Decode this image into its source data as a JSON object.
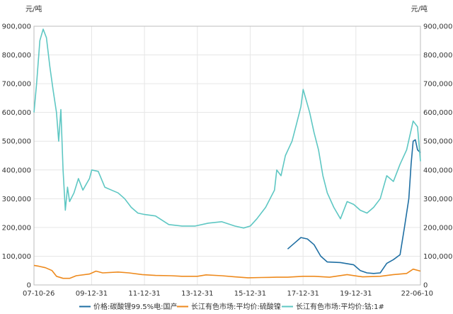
{
  "chart_data": {
    "type": "line",
    "y_unit_left": "元/吨",
    "y_unit_right": "元/吨",
    "ylim": [
      0,
      900000
    ],
    "yticks": [
      0,
      100000,
      200000,
      300000,
      400000,
      500000,
      600000,
      700000,
      800000,
      900000
    ],
    "ytick_labels": [
      "0",
      "100,000",
      "200,000",
      "300,000",
      "400,000",
      "500,000",
      "600,000",
      "700,000",
      "800,000",
      "900,000"
    ],
    "xlim": [
      "2007-10-26",
      "2022-06-10"
    ],
    "xticks": [
      "2007-10-26",
      "2009-12-31",
      "2011-12-31",
      "2013-12-31",
      "2015-12-31",
      "2017-12-31",
      "2019-12-31",
      "2022-06-10"
    ],
    "xtick_labels": [
      "07-10-26",
      "09-12-31",
      "11-12-31",
      "13-12-31",
      "15-12-31",
      "17-12-31",
      "19-12-31",
      "22-06-10"
    ],
    "grid": true,
    "legend_position": "bottom",
    "series": [
      {
        "name": "价格:碳酸锂99.5%电:国产",
        "color": "#1f6fa3",
        "points": [
          [
            "2017-06-01",
            125000
          ],
          [
            "2017-09-01",
            145000
          ],
          [
            "2017-12-01",
            165000
          ],
          [
            "2018-03-01",
            160000
          ],
          [
            "2018-06-01",
            140000
          ],
          [
            "2018-09-01",
            100000
          ],
          [
            "2018-12-01",
            80000
          ],
          [
            "2019-06-01",
            78000
          ],
          [
            "2019-12-01",
            70000
          ],
          [
            "2020-03-01",
            50000
          ],
          [
            "2020-06-01",
            42000
          ],
          [
            "2020-09-01",
            40000
          ],
          [
            "2020-12-01",
            42000
          ],
          [
            "2021-03-01",
            75000
          ],
          [
            "2021-06-01",
            88000
          ],
          [
            "2021-09-01",
            105000
          ],
          [
            "2021-11-01",
            200000
          ],
          [
            "2022-01-01",
            300000
          ],
          [
            "2022-02-01",
            420000
          ],
          [
            "2022-03-01",
            500000
          ],
          [
            "2022-04-01",
            505000
          ],
          [
            "2022-05-01",
            470000
          ],
          [
            "2022-06-10",
            460000
          ]
        ]
      },
      {
        "name": "长江有色市场:平均价:硫酸镍",
        "color": "#ee8a1d",
        "points": [
          [
            "2007-10-26",
            68000
          ],
          [
            "2008-01-01",
            65000
          ],
          [
            "2008-04-01",
            60000
          ],
          [
            "2008-07-01",
            50000
          ],
          [
            "2008-09-01",
            30000
          ],
          [
            "2008-12-01",
            23000
          ],
          [
            "2009-03-01",
            23000
          ],
          [
            "2009-06-01",
            32000
          ],
          [
            "2009-12-01",
            38000
          ],
          [
            "2010-03-01",
            48000
          ],
          [
            "2010-06-01",
            42000
          ],
          [
            "2011-01-01",
            45000
          ],
          [
            "2011-06-01",
            42000
          ],
          [
            "2011-12-01",
            36000
          ],
          [
            "2012-06-01",
            33000
          ],
          [
            "2013-01-01",
            32000
          ],
          [
            "2013-06-01",
            30000
          ],
          [
            "2014-01-01",
            30000
          ],
          [
            "2014-05-01",
            35000
          ],
          [
            "2014-12-01",
            32000
          ],
          [
            "2015-06-01",
            28000
          ],
          [
            "2015-12-01",
            25000
          ],
          [
            "2016-06-01",
            26000
          ],
          [
            "2017-01-01",
            27000
          ],
          [
            "2017-06-01",
            27000
          ],
          [
            "2018-01-01",
            30000
          ],
          [
            "2018-06-01",
            30000
          ],
          [
            "2019-01-01",
            27000
          ],
          [
            "2019-09-01",
            36000
          ],
          [
            "2020-04-01",
            28000
          ],
          [
            "2020-12-01",
            30000
          ],
          [
            "2021-06-01",
            36000
          ],
          [
            "2021-12-01",
            40000
          ],
          [
            "2022-03-01",
            55000
          ],
          [
            "2022-06-10",
            48000
          ]
        ]
      },
      {
        "name": "长江有色市场:平均价:钴:1#",
        "color": "#5ec7c3",
        "points": [
          [
            "2007-10-26",
            600000
          ],
          [
            "2007-12-01",
            700000
          ],
          [
            "2008-01-15",
            850000
          ],
          [
            "2008-03-01",
            890000
          ],
          [
            "2008-04-15",
            860000
          ],
          [
            "2008-06-01",
            760000
          ],
          [
            "2008-07-15",
            680000
          ],
          [
            "2008-09-01",
            600000
          ],
          [
            "2008-10-01",
            500000
          ],
          [
            "2008-11-01",
            610000
          ],
          [
            "2008-12-01",
            400000
          ],
          [
            "2009-01-01",
            260000
          ],
          [
            "2009-02-01",
            340000
          ],
          [
            "2009-03-01",
            290000
          ],
          [
            "2009-05-01",
            320000
          ],
          [
            "2009-07-01",
            370000
          ],
          [
            "2009-09-01",
            330000
          ],
          [
            "2009-12-01",
            370000
          ],
          [
            "2010-01-01",
            400000
          ],
          [
            "2010-04-01",
            395000
          ],
          [
            "2010-07-01",
            340000
          ],
          [
            "2010-10-01",
            330000
          ],
          [
            "2011-01-01",
            320000
          ],
          [
            "2011-04-01",
            300000
          ],
          [
            "2011-07-01",
            270000
          ],
          [
            "2011-10-01",
            250000
          ],
          [
            "2012-01-01",
            245000
          ],
          [
            "2012-06-01",
            240000
          ],
          [
            "2012-12-01",
            210000
          ],
          [
            "2013-06-01",
            205000
          ],
          [
            "2013-12-01",
            205000
          ],
          [
            "2014-06-01",
            215000
          ],
          [
            "2014-12-01",
            220000
          ],
          [
            "2015-06-01",
            205000
          ],
          [
            "2015-10-01",
            198000
          ],
          [
            "2016-01-01",
            205000
          ],
          [
            "2016-04-01",
            230000
          ],
          [
            "2016-08-01",
            270000
          ],
          [
            "2016-12-01",
            330000
          ],
          [
            "2017-01-01",
            400000
          ],
          [
            "2017-03-01",
            380000
          ],
          [
            "2017-05-01",
            450000
          ],
          [
            "2017-08-01",
            500000
          ],
          [
            "2017-10-01",
            560000
          ],
          [
            "2017-12-01",
            620000
          ],
          [
            "2018-01-01",
            680000
          ],
          [
            "2018-02-15",
            640000
          ],
          [
            "2018-04-01",
            600000
          ],
          [
            "2018-06-01",
            530000
          ],
          [
            "2018-08-01",
            470000
          ],
          [
            "2018-10-01",
            380000
          ],
          [
            "2018-12-01",
            320000
          ],
          [
            "2019-03-01",
            270000
          ],
          [
            "2019-06-01",
            230000
          ],
          [
            "2019-09-01",
            290000
          ],
          [
            "2019-12-01",
            280000
          ],
          [
            "2020-03-01",
            260000
          ],
          [
            "2020-06-01",
            250000
          ],
          [
            "2020-09-01",
            270000
          ],
          [
            "2020-12-01",
            300000
          ],
          [
            "2021-03-01",
            380000
          ],
          [
            "2021-06-01",
            360000
          ],
          [
            "2021-09-01",
            420000
          ],
          [
            "2021-12-01",
            470000
          ],
          [
            "2022-03-01",
            570000
          ],
          [
            "2022-05-01",
            550000
          ],
          [
            "2022-06-10",
            430000
          ]
        ]
      }
    ]
  }
}
